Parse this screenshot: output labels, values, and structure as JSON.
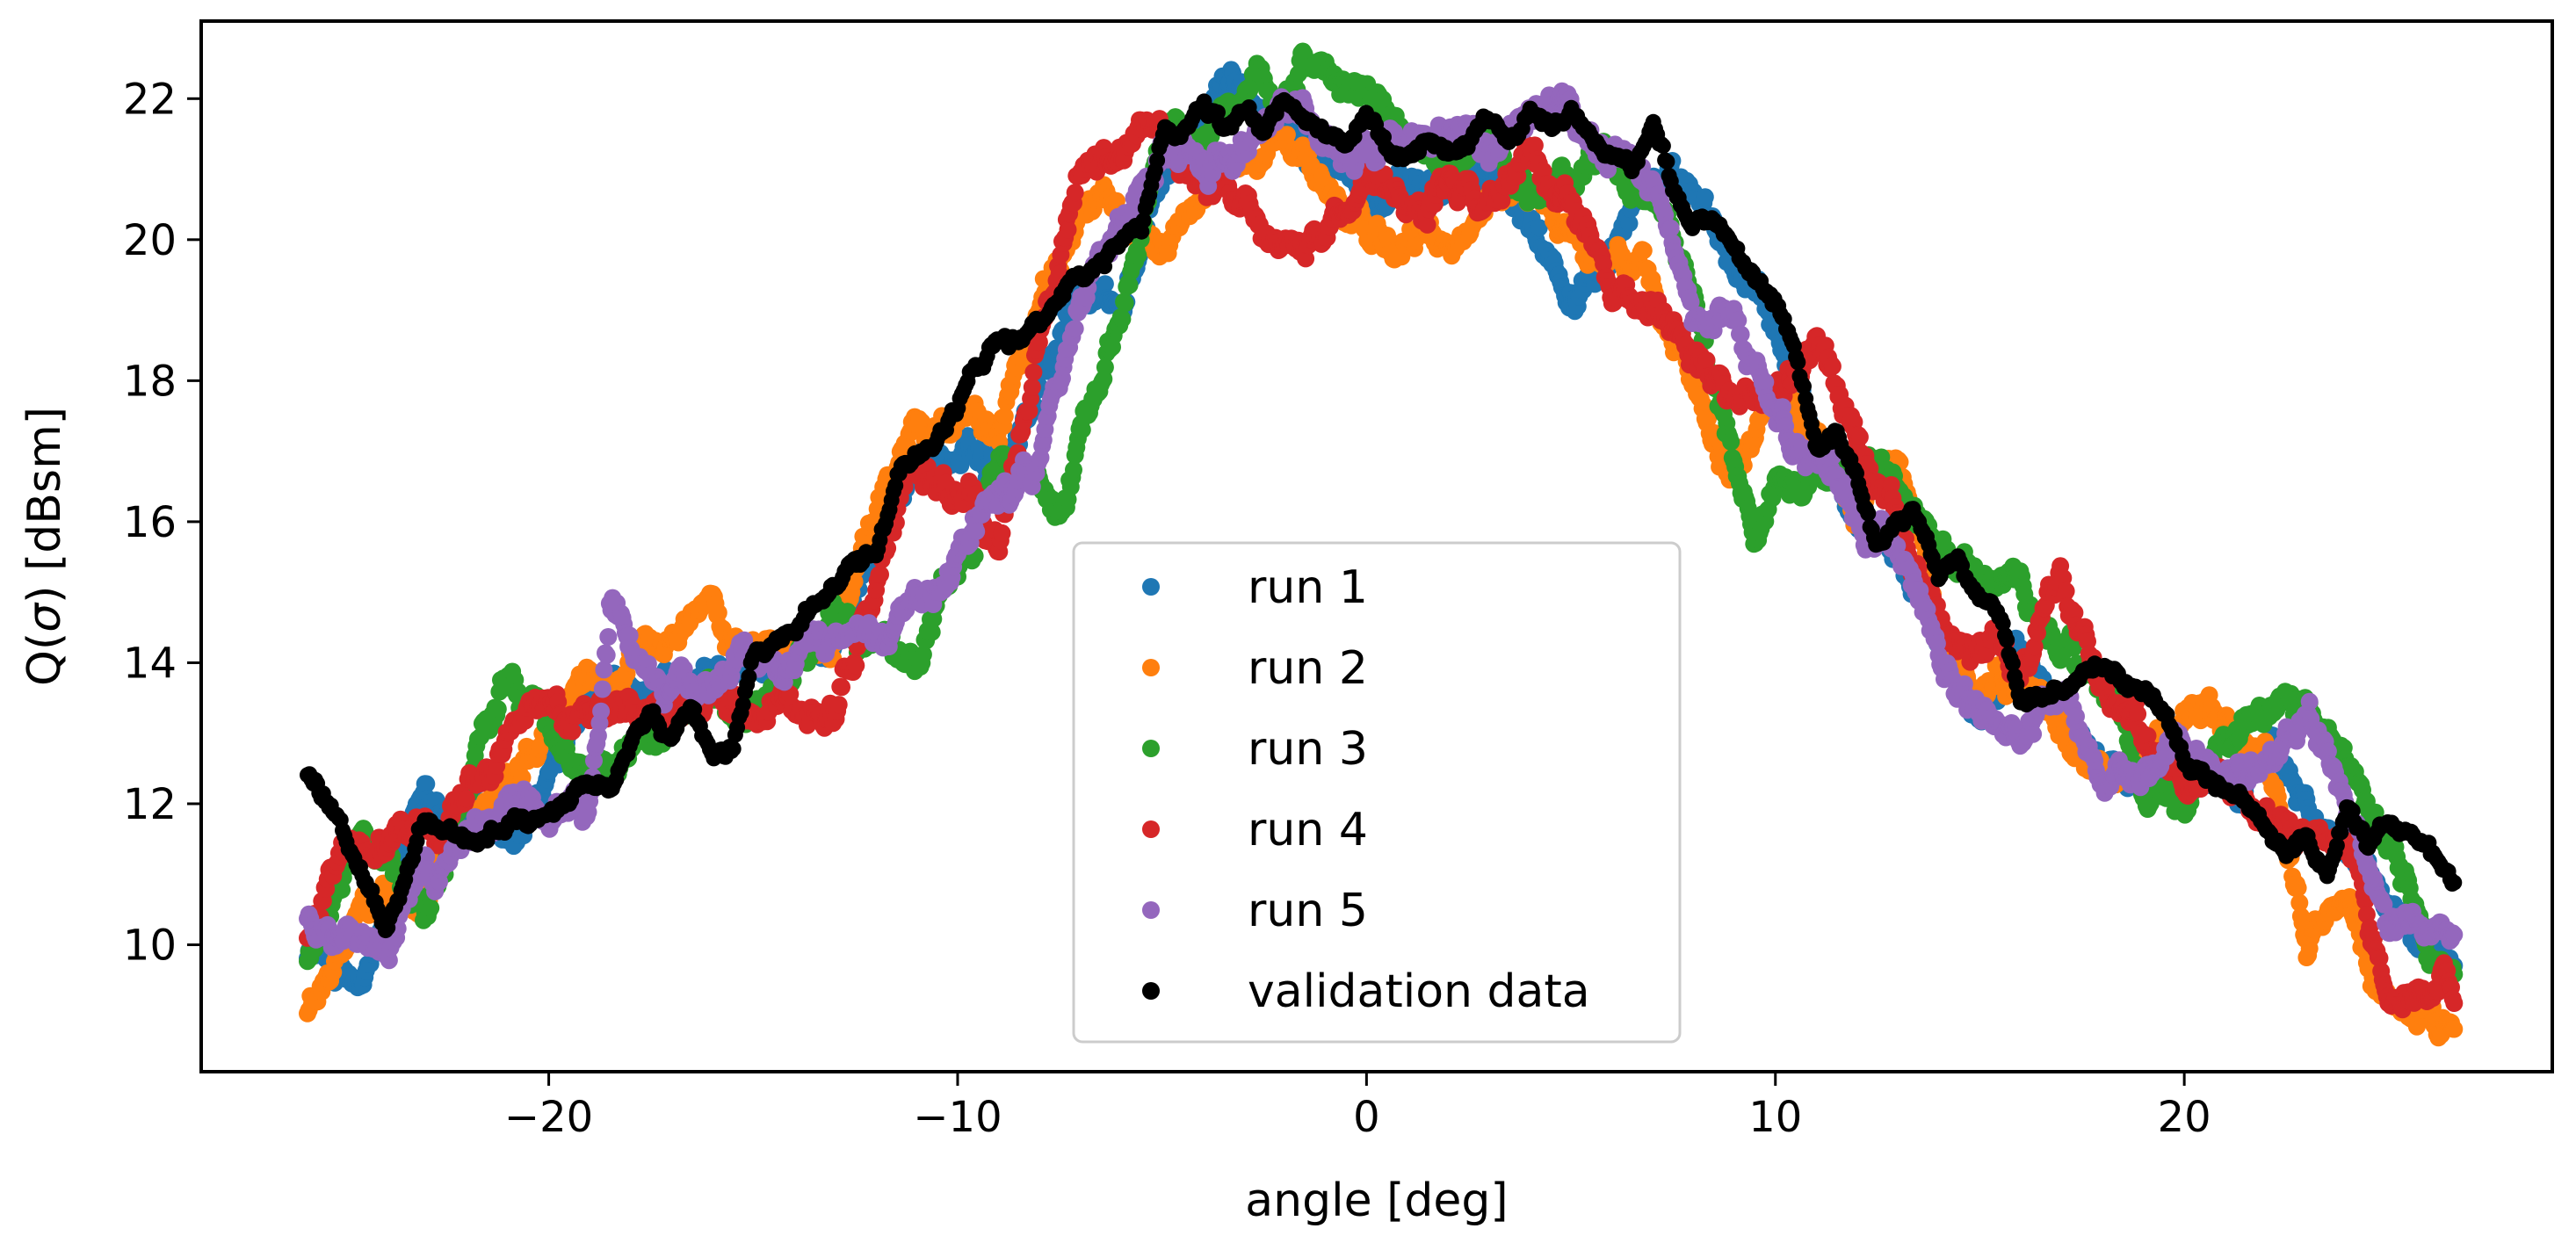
{
  "chart_data": {
    "type": "scatter",
    "title": "",
    "xlabel": "angle [deg]",
    "ylabel_prefix": "Q(",
    "ylabel_sigma": "σ",
    "ylabel_suffix": ") [dBsm]",
    "xlim": [
      -28.5,
      29.0
    ],
    "ylim": [
      8.2,
      23.1
    ],
    "x_ticks": [
      -20,
      -10,
      0,
      10,
      20
    ],
    "x_tick_labels": [
      "−20",
      "−10",
      "0",
      "10",
      "20"
    ],
    "y_ticks": [
      10,
      12,
      14,
      16,
      18,
      20,
      22
    ],
    "y_tick_labels": [
      "10",
      "12",
      "14",
      "16",
      "18",
      "20",
      "22"
    ],
    "grid": false,
    "legend_position": "lower-center",
    "x_range": [
      -25.9,
      26.6
    ],
    "series": [
      {
        "name": "run 1",
        "color": "#1f77b4",
        "x": [
          -25.9,
          -24.5,
          -23,
          -21,
          -19,
          -17,
          -15,
          -13,
          -11,
          -9,
          -7,
          -6,
          -5,
          -3.5,
          -2,
          -1,
          0,
          1,
          2,
          3,
          4,
          5,
          6,
          7,
          8,
          9,
          10,
          11,
          12,
          13,
          14,
          15,
          16,
          17,
          18,
          19,
          20,
          21,
          22,
          23,
          24,
          25,
          26.6
        ],
        "y": [
          10.0,
          9.3,
          12.2,
          11.3,
          13.3,
          13.4,
          13.8,
          14.5,
          17.0,
          16.8,
          19.4,
          19.0,
          20.8,
          22.1,
          21.8,
          21.3,
          20.6,
          20.7,
          20.8,
          20.9,
          20.2,
          19.4,
          20.4,
          21.0,
          20.4,
          19.5,
          18.8,
          17.3,
          16.0,
          15.6,
          14.5,
          13.6,
          13.9,
          13.3,
          12.9,
          12.4,
          12.6,
          12.5,
          12.6,
          12.1,
          11.0,
          10.5,
          9.7
        ]
      },
      {
        "name": "run 2",
        "color": "#ff7f0e",
        "x": [
          -25.9,
          -24.5,
          -23,
          -21,
          -19,
          -17,
          -16,
          -15,
          -13,
          -11,
          -9,
          -7,
          -5,
          -4,
          -3,
          -2,
          -1,
          0,
          1,
          2,
          3,
          4,
          5,
          6,
          7,
          8,
          9,
          10,
          11,
          12,
          13,
          14,
          15,
          16,
          17,
          18,
          19,
          20,
          21,
          22,
          23,
          24,
          25,
          26.6
        ],
        "y": [
          9.0,
          10.6,
          10.6,
          12.5,
          13.7,
          14.2,
          15.0,
          14.2,
          14.4,
          17.5,
          17.4,
          20.5,
          20.0,
          20.7,
          21.1,
          21.5,
          20.8,
          20.0,
          20.0,
          19.8,
          20.5,
          20.8,
          20.1,
          19.6,
          19.5,
          18.0,
          17.0,
          17.8,
          17.4,
          16.2,
          16.9,
          14.8,
          13.4,
          13.7,
          13.1,
          12.5,
          12.6,
          13.1,
          12.9,
          12.5,
          10.1,
          10.5,
          9.1,
          8.8
        ]
      },
      {
        "name": "run 3",
        "color": "#2ca02c",
        "x": [
          -25.9,
          -24.5,
          -23,
          -21,
          -19,
          -17,
          -15,
          -13,
          -11,
          -9,
          -7.5,
          -7,
          -6,
          -5,
          -3.5,
          -2,
          -1.5,
          0,
          1,
          2,
          3,
          4,
          5,
          6,
          7,
          8,
          9,
          9.5,
          10,
          11,
          12,
          13,
          14,
          15,
          16,
          17,
          18,
          19,
          20,
          21,
          22,
          23,
          24,
          25,
          26.6
        ],
        "y": [
          9.8,
          11.7,
          10.4,
          13.8,
          12.5,
          13.3,
          13.5,
          14.8,
          13.9,
          16.8,
          16.2,
          17.2,
          19.2,
          21.4,
          21.8,
          21.7,
          22.4,
          22.1,
          21.3,
          21.1,
          21.5,
          20.6,
          21.0,
          21.2,
          20.5,
          19.2,
          16.6,
          15.8,
          16.5,
          16.6,
          17.0,
          16.2,
          15.3,
          15.0,
          15.0,
          14.0,
          13.8,
          12.4,
          12.2,
          13.2,
          13.4,
          13.4,
          12.4,
          11.5,
          9.2
        ]
      },
      {
        "name": "run 4",
        "color": "#d62728",
        "x": [
          -25.9,
          -25,
          -23,
          -21,
          -19,
          -17,
          -15,
          -13.5,
          -13,
          -11,
          -10,
          -9,
          -8,
          -7,
          -6,
          -5,
          -4,
          -3,
          -2,
          -1,
          0,
          1,
          2,
          3,
          4,
          5,
          6,
          7,
          8,
          9,
          10,
          11,
          12,
          13,
          14,
          15,
          16,
          17,
          18,
          19,
          20,
          21,
          22,
          23,
          24,
          25,
          26.6
        ],
        "y": [
          10.2,
          11.2,
          11.7,
          13.3,
          13.3,
          13.2,
          13.1,
          13.5,
          13.2,
          16.9,
          16.5,
          15.6,
          18.5,
          20.8,
          21.1,
          21.2,
          20.9,
          20.4,
          20.0,
          20.2,
          20.8,
          20.4,
          20.5,
          20.3,
          21.0,
          20.5,
          19.4,
          19.1,
          18.2,
          17.5,
          18.0,
          18.4,
          17.2,
          16.0,
          14.6,
          14.3,
          13.9,
          15.1,
          14.0,
          12.9,
          12.4,
          12.5,
          12.0,
          11.6,
          11.5,
          9.2,
          9.5
        ]
      },
      {
        "name": "run 5",
        "color": "#9467bd",
        "x": [
          -25.9,
          -25,
          -24,
          -23,
          -21,
          -19,
          -18.5,
          -17,
          -15,
          -13,
          -11,
          -9,
          -8,
          -7,
          -6,
          -5,
          -4,
          -3,
          -2,
          -1,
          0,
          1,
          2,
          3,
          4,
          5,
          6,
          7,
          8,
          9,
          10,
          11,
          12,
          13,
          14,
          15,
          16,
          17,
          18,
          19,
          20,
          21,
          22,
          23,
          24,
          25,
          26.6
        ],
        "y": [
          10.4,
          10.3,
          9.8,
          10.9,
          12.0,
          12.1,
          14.9,
          13.4,
          14.4,
          14.2,
          15.0,
          16.6,
          16.8,
          19.0,
          20.5,
          21.5,
          21.1,
          21.3,
          21.8,
          21.4,
          21.2,
          21.3,
          21.5,
          21.2,
          21.7,
          21.5,
          21.0,
          20.7,
          18.8,
          19.0,
          17.5,
          17.0,
          16.0,
          15.7,
          14.2,
          13.2,
          13.1,
          13.4,
          12.4,
          12.5,
          13.1,
          12.3,
          12.7,
          13.4,
          12.0,
          10.4,
          10.3
        ]
      },
      {
        "name": "validation data",
        "color": "#000000",
        "x": [
          -25.9,
          -25.3,
          -25,
          -24.5,
          -24,
          -23,
          -22,
          -21,
          -20,
          -19,
          -18.5,
          -18,
          -17.5,
          -17,
          -16.5,
          -16,
          -15.5,
          -15,
          -14,
          -13,
          -12,
          -11.5,
          -11,
          -10.5,
          -10,
          -9.5,
          -9,
          -8.5,
          -8,
          -7.5,
          -7,
          -6.5,
          -6,
          -5.5,
          -5,
          -4.5,
          -4,
          -3.5,
          -3,
          -2.5,
          -2,
          -1.5,
          -1,
          -0.5,
          0,
          0.5,
          1,
          1.5,
          2,
          2.5,
          3,
          3.5,
          4,
          4.5,
          5,
          5.5,
          6,
          6.5,
          7,
          7.5,
          8,
          8.5,
          9,
          9.5,
          10,
          10.5,
          11,
          11.5,
          12,
          12.5,
          13,
          13.5,
          14,
          14.5,
          15,
          15.5,
          16,
          16.5,
          17,
          17.5,
          18,
          18.5,
          19,
          19.5,
          20,
          20.5,
          21,
          21.5,
          22,
          22.5,
          23,
          23.5,
          24,
          24.5,
          25,
          25.5,
          26,
          26.6
        ],
        "y": [
          12.4,
          12.0,
          11.6,
          11.0,
          10.3,
          11.8,
          11.4,
          11.6,
          11.7,
          12.3,
          12.2,
          13.0,
          13.5,
          13.1,
          13.4,
          12.7,
          12.8,
          14.3,
          14.5,
          15.2,
          15.6,
          16.5,
          16.9,
          17.3,
          17.7,
          18.2,
          18.6,
          18.6,
          18.9,
          19.3,
          19.5,
          19.7,
          20.1,
          20.1,
          21.4,
          21.6,
          21.8,
          21.5,
          21.9,
          21.6,
          22.1,
          21.8,
          21.5,
          21.4,
          21.9,
          21.3,
          21.2,
          21.5,
          21.3,
          21.5,
          21.6,
          21.4,
          21.7,
          21.5,
          21.8,
          21.4,
          21.1,
          21.0,
          21.6,
          20.6,
          20.3,
          20.3,
          19.9,
          19.5,
          19.2,
          18.4,
          17.0,
          17.2,
          16.6,
          15.6,
          16.2,
          16.0,
          15.2,
          15.3,
          14.7,
          14.6,
          13.5,
          13.6,
          13.7,
          13.9,
          14.0,
          13.8,
          13.6,
          13.4,
          12.6,
          12.5,
          12.3,
          12.1,
          11.7,
          11.3,
          11.7,
          11.1,
          12.0,
          11.4,
          11.8,
          11.7,
          11.4,
          10.9
        ]
      }
    ]
  }
}
